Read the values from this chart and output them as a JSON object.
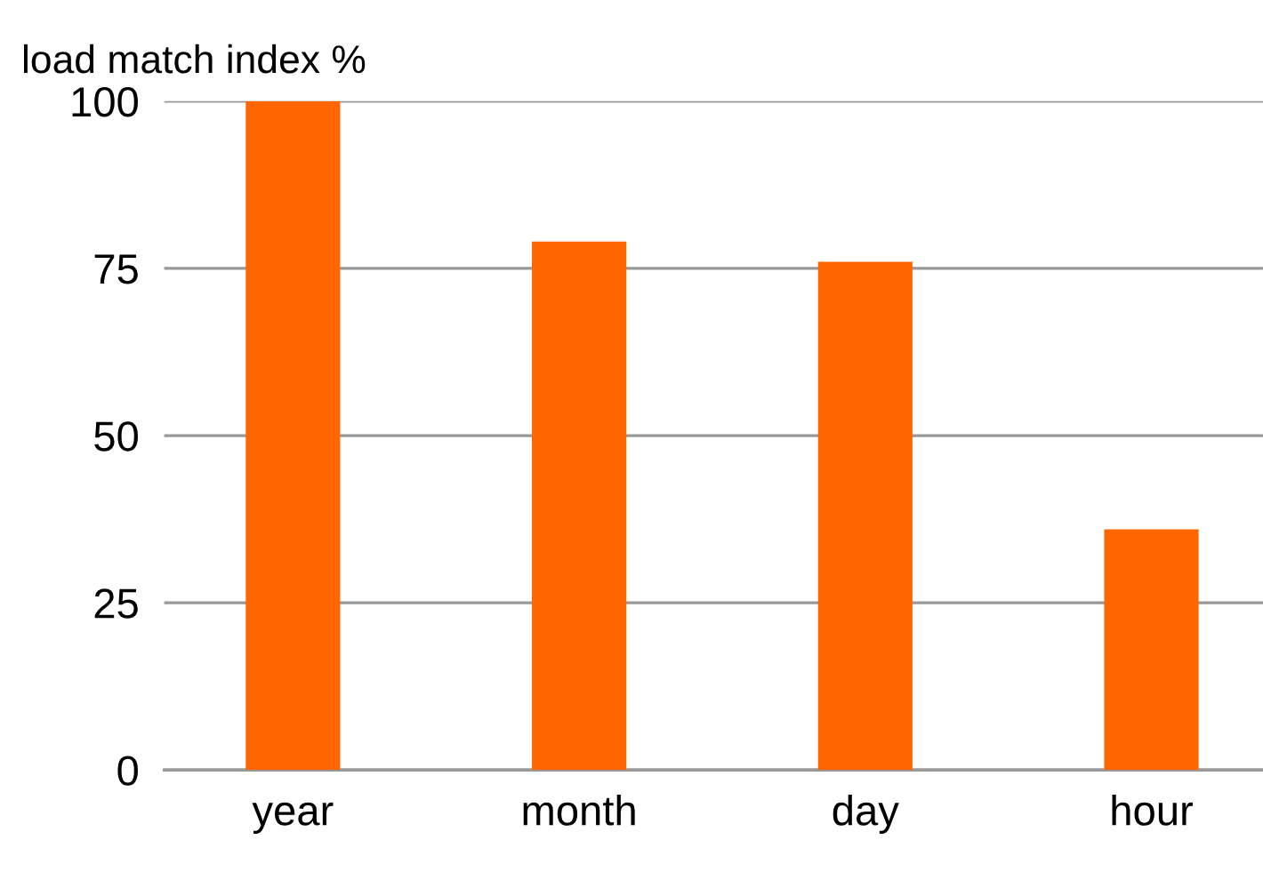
{
  "chart_data": {
    "type": "bar",
    "ylabel": "load match index %",
    "categories": [
      "year",
      "month",
      "day",
      "hour"
    ],
    "values": [
      100,
      79,
      76,
      36
    ],
    "color": "#ff6600",
    "ylim": [
      0,
      100
    ],
    "yticks": [
      0,
      25,
      50,
      75,
      100
    ],
    "grid": "y",
    "legend": false
  }
}
